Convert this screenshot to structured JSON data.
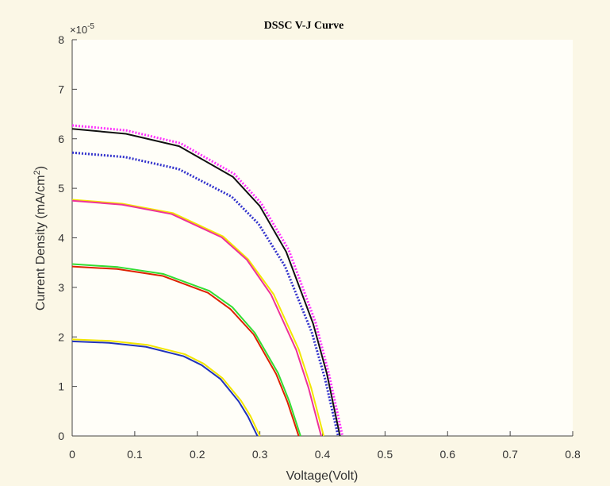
{
  "chart_data": {
    "type": "line",
    "title": "DSSC V-J Curve",
    "xlabel": "Voltage(Volt)",
    "ylabel": {
      "text": "Current Density (mA/cm",
      "sup": "2",
      "end": ")"
    },
    "y_multiplier": {
      "base": "×10",
      "exponent": "-5"
    },
    "xlim": [
      0,
      0.8
    ],
    "xticks": [
      0,
      0.1,
      0.2,
      0.3,
      0.4,
      0.5,
      0.6,
      0.7,
      0.8
    ],
    "ylim": [
      0,
      8
    ],
    "yticks": [
      0,
      1,
      2,
      3,
      4,
      5,
      6,
      7,
      8
    ],
    "series": [
      {
        "color": "#ff33ff",
        "dash": "dotted",
        "x": [
          0,
          0.086,
          0.173,
          0.259,
          0.302,
          0.346,
          0.389,
          0.41,
          0.432
        ],
        "values": [
          6.27,
          6.17,
          5.91,
          5.29,
          4.7,
          3.76,
          2.29,
          1.27,
          0
        ]
      },
      {
        "color": "#111111",
        "dash": "solid",
        "x": [
          0,
          0.086,
          0.171,
          0.257,
          0.3,
          0.342,
          0.385,
          0.407,
          0.428
        ],
        "values": [
          6.2,
          6.1,
          5.85,
          5.23,
          4.64,
          3.72,
          2.27,
          1.26,
          0
        ]
      },
      {
        "color": "#3333cc",
        "dash": "dotted",
        "x": [
          0,
          0.085,
          0.17,
          0.255,
          0.298,
          0.34,
          0.383,
          0.404,
          0.425
        ],
        "values": [
          5.72,
          5.63,
          5.39,
          4.83,
          4.28,
          3.43,
          2.09,
          1.16,
          0
        ]
      },
      {
        "color": "#f2e600",
        "dash": "solid",
        "x": [
          0,
          0.08,
          0.161,
          0.241,
          0.281,
          0.322,
          0.362,
          0.382,
          0.402
        ],
        "values": [
          4.77,
          4.69,
          4.5,
          4.03,
          3.57,
          2.86,
          1.75,
          0.97,
          0
        ]
      },
      {
        "color": "#ee3399",
        "dash": "solid",
        "x": [
          0,
          0.08,
          0.159,
          0.239,
          0.279,
          0.318,
          0.358,
          0.378,
          0.398
        ],
        "values": [
          4.75,
          4.67,
          4.48,
          4.01,
          3.56,
          2.85,
          1.74,
          0.96,
          0
        ]
      },
      {
        "color": "#33dd33",
        "dash": "solid",
        "x": [
          0,
          0.073,
          0.146,
          0.219,
          0.256,
          0.292,
          0.329,
          0.347,
          0.365
        ],
        "values": [
          3.47,
          3.41,
          3.27,
          2.93,
          2.6,
          2.08,
          1.27,
          0.7,
          0
        ]
      },
      {
        "color": "#dd2200",
        "dash": "solid",
        "x": [
          0,
          0.072,
          0.145,
          0.217,
          0.253,
          0.29,
          0.326,
          0.344,
          0.362
        ],
        "values": [
          3.42,
          3.37,
          3.23,
          2.89,
          2.56,
          2.05,
          1.25,
          0.69,
          0
        ]
      },
      {
        "color": "#f2e600",
        "dash": "solid",
        "x": [
          0,
          0.06,
          0.12,
          0.18,
          0.21,
          0.24,
          0.27,
          0.285,
          0.3
        ],
        "values": [
          1.95,
          1.92,
          1.84,
          1.65,
          1.46,
          1.17,
          0.71,
          0.4,
          0
        ]
      },
      {
        "color": "#2233bb",
        "dash": "solid",
        "x": [
          0,
          0.059,
          0.118,
          0.178,
          0.207,
          0.237,
          0.266,
          0.281,
          0.296
        ],
        "values": [
          1.91,
          1.88,
          1.8,
          1.61,
          1.43,
          1.15,
          0.7,
          0.39,
          0
        ]
      }
    ]
  }
}
